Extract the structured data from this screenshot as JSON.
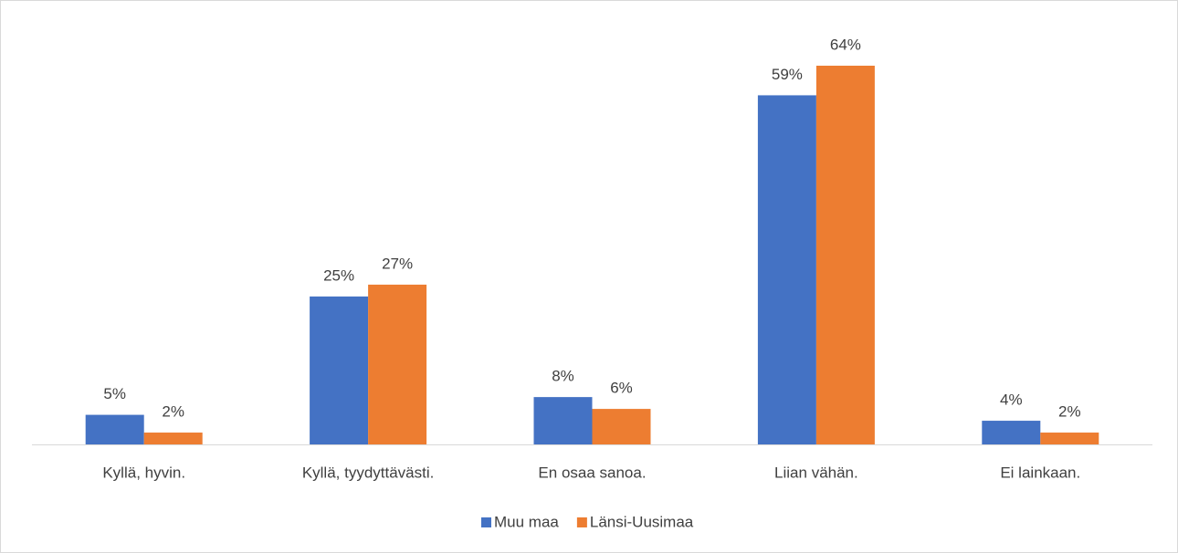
{
  "chart_data": {
    "type": "bar",
    "categories": [
      "Kyllä, hyvin.",
      "Kyllä, tyydyttävästi.",
      "En osaa sanoa.",
      "Liian vähän.",
      "Ei lainkaan."
    ],
    "series": [
      {
        "name": "Muu maa",
        "color": "#4472c4",
        "values": [
          5,
          25,
          8,
          59,
          4
        ],
        "value_labels": [
          "5%",
          "25%",
          "8%",
          "59%",
          "4%"
        ]
      },
      {
        "name": "Länsi-Uusimaa",
        "color": "#ed7d31",
        "values": [
          2,
          27,
          6,
          64,
          2
        ],
        "value_labels": [
          "2%",
          "27%",
          "6%",
          "64%",
          "2%"
        ]
      }
    ],
    "legend": "bottom"
  }
}
